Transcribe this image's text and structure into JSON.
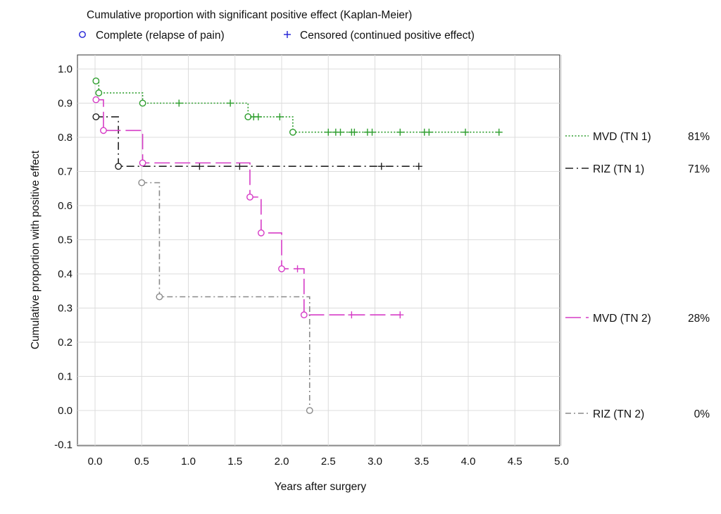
{
  "chart_data": {
    "type": "line",
    "title": "Cumulative proportion with significant positive effect (Kaplan-Meier)",
    "xlabel": "Years after surgery",
    "ylabel": "Cumulative proportion with positive effect",
    "xlim": [
      -0.1,
      5.0
    ],
    "ylim": [
      -0.1,
      1.05
    ],
    "x_ticks": [
      "0.0",
      "0.5",
      "1.0",
      "1.5",
      "2.0",
      "2.5",
      "3.0",
      "3.5",
      "4.0",
      "4.5",
      "5.0"
    ],
    "y_ticks": [
      "1.0",
      "0.9",
      "0.8",
      "0.7",
      "0.6",
      "0.5",
      "0.4",
      "0.3",
      "0.2",
      "0.1",
      "0.0",
      "-0.1"
    ],
    "grid": true,
    "legend_top": [
      {
        "label": "Complete (relapse of pain)",
        "marker": "circle",
        "color": "#1f1fd6"
      },
      {
        "label": "Censored (continued positive effect)",
        "marker": "plus",
        "color": "#1f1fd6"
      }
    ],
    "series": [
      {
        "name": "MVD (TN 1)",
        "percent": "81%",
        "color": "#2e9e2e",
        "dash": "dotted",
        "steps": [
          [
            0,
            0.97
          ],
          [
            0.01,
            0.965
          ],
          [
            0.04,
            0.93
          ],
          [
            0.51,
            0.9
          ],
          [
            1.64,
            0.86
          ],
          [
            2.12,
            0.815
          ],
          [
            4.33,
            0.815
          ]
        ],
        "events": [
          [
            0.01,
            0.965
          ],
          [
            0.04,
            0.93
          ],
          [
            0.51,
            0.9
          ],
          [
            1.64,
            0.86
          ],
          [
            2.12,
            0.815
          ]
        ],
        "censored": [
          [
            0.9,
            0.9
          ],
          [
            1.45,
            0.9
          ],
          [
            1.7,
            0.86
          ],
          [
            1.75,
            0.86
          ],
          [
            1.98,
            0.86
          ],
          [
            2.5,
            0.815
          ],
          [
            2.58,
            0.815
          ],
          [
            2.63,
            0.815
          ],
          [
            2.75,
            0.815
          ],
          [
            2.78,
            0.815
          ],
          [
            2.92,
            0.815
          ],
          [
            2.97,
            0.815
          ],
          [
            3.27,
            0.815
          ],
          [
            3.53,
            0.815
          ],
          [
            3.58,
            0.815
          ],
          [
            3.97,
            0.815
          ],
          [
            4.33,
            0.815
          ]
        ]
      },
      {
        "name": "RIZ (TN 1)",
        "percent": "71%",
        "color": "#222222",
        "dash": "dash-dot",
        "steps": [
          [
            0,
            0.86
          ],
          [
            0.25,
            0.715
          ],
          [
            3.47,
            0.715
          ]
        ],
        "events": [
          [
            0.01,
            0.86
          ],
          [
            0.25,
            0.715
          ]
        ],
        "censored": [
          [
            1.12,
            0.715
          ],
          [
            1.55,
            0.715
          ],
          [
            3.07,
            0.715
          ],
          [
            3.47,
            0.715
          ]
        ]
      },
      {
        "name": "MVD (TN 2)",
        "percent": "28%",
        "color": "#d63cc6",
        "dash": "long-dash",
        "steps": [
          [
            0,
            0.91
          ],
          [
            0.09,
            0.82
          ],
          [
            0.51,
            0.725
          ],
          [
            1.66,
            0.625
          ],
          [
            1.78,
            0.52
          ],
          [
            2.0,
            0.415
          ],
          [
            2.24,
            0.28
          ],
          [
            3.27,
            0.28
          ]
        ],
        "events": [
          [
            0.01,
            0.91
          ],
          [
            0.09,
            0.82
          ],
          [
            0.51,
            0.725
          ],
          [
            1.66,
            0.625
          ],
          [
            1.78,
            0.52
          ],
          [
            2.0,
            0.415
          ],
          [
            2.24,
            0.28
          ]
        ],
        "censored": [
          [
            2.17,
            0.415
          ],
          [
            2.75,
            0.28
          ],
          [
            3.27,
            0.28
          ]
        ]
      },
      {
        "name": "RIZ (TN 2)",
        "percent": "0%",
        "color": "#8a8a8a",
        "dash": "dash-dot-gray",
        "steps": [
          [
            0.5,
            0.667
          ],
          [
            0.69,
            0.333
          ],
          [
            2.3,
            0.0
          ]
        ],
        "events": [
          [
            0.5,
            0.667
          ],
          [
            0.69,
            0.333
          ],
          [
            2.3,
            0.0
          ]
        ],
        "censored": []
      }
    ]
  }
}
